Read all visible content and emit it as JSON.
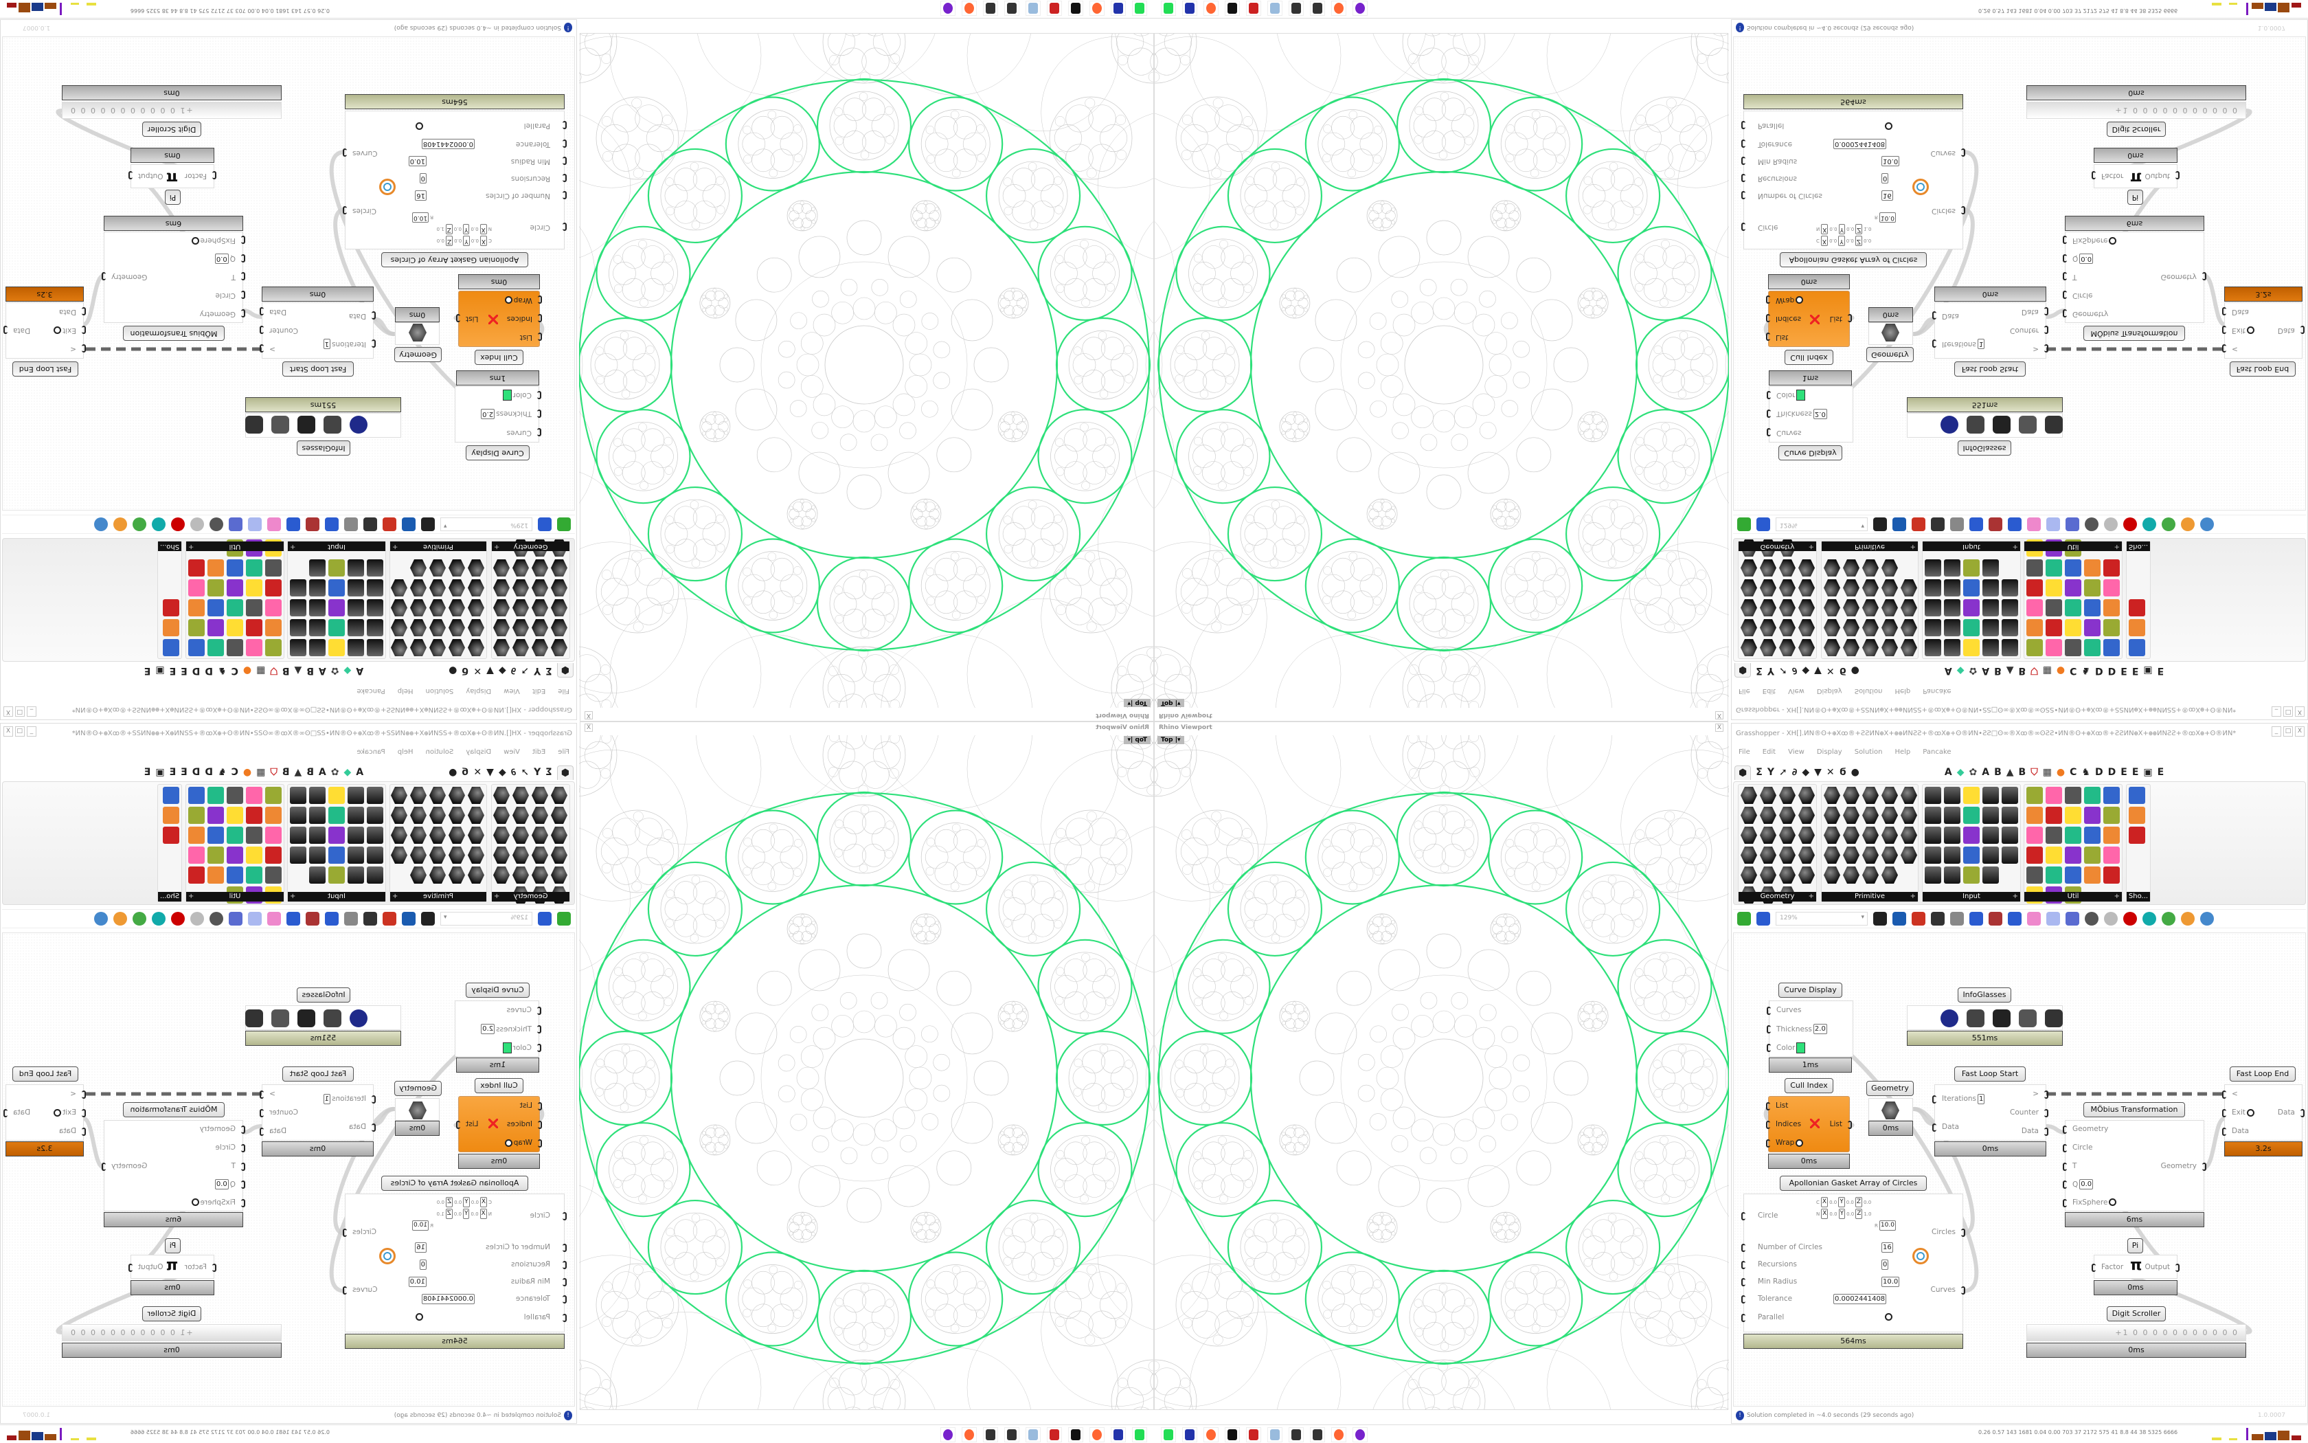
{
  "viewport": {
    "title": "Rhino Viewport",
    "view_name": "Top",
    "close": "X",
    "colors": {
      "highlight": "#2ee07a",
      "pattern": "#c8c8c8"
    }
  },
  "grasshopper": {
    "title": "Grasshopper - XH[].ИN®ʘ+ꚛXꚙ®+ƧƧИNꚛX+ꚛꚛИNƧƧ+®ꚙXꚛ+ʘ®ИN•ƧƧ□ʘ∞®Xꚙ®∞ʘƧƧ•ИN®ʘ+ꚛXꚙ®+ƧƧИNꚛX+ꚛꚛИNƧƧ+®ꚙXꚛ+ʘ®ИN*",
    "window_buttons": [
      "_",
      "□",
      "X"
    ],
    "menu": [
      "File",
      "Edit",
      "View",
      "Display",
      "Solution",
      "Help",
      "Pancake"
    ],
    "tabs": [
      "params-icon",
      "maths-icon",
      "sets-icon",
      "vector-icon",
      "curve-icon",
      "surface-icon",
      "mesh-icon",
      "intersect-icon",
      "transform-icon",
      "display-icon"
    ],
    "plugin_tabs": [
      "A",
      "leaf-icon",
      "gear-icon",
      "A",
      "B",
      "hill-icon",
      "B",
      "shield-icon",
      "grid-icon",
      "orange-circle-icon",
      "C",
      "rooster-icon",
      "D",
      "D",
      "E",
      "E",
      "dotted-square-icon",
      "E"
    ],
    "panels": [
      {
        "label": "Geometry",
        "expand": "+"
      },
      {
        "label": "Primitive",
        "expand": "+"
      },
      {
        "label": "Input",
        "expand": "+"
      },
      {
        "label": "Util",
        "expand": "+"
      },
      {
        "label": "Sho..."
      }
    ],
    "toolbar": {
      "zoom": "129%",
      "icons": [
        "new-document-icon",
        "save-icon",
        "zoom-extents-icon",
        "preview-eye-icon",
        "sketch-pen-icon",
        "cluster-icon",
        "email-icon",
        "gha-icon",
        "canvas-image-icon",
        "search-icon",
        "package-icon",
        "bulb-icon",
        "wire-icon",
        "preview-off-icon",
        "wireframe-icon",
        "shaded-icon",
        "selected-icon",
        "custom-icon",
        "shade-icon",
        "sphere-icon"
      ]
    },
    "components": [
      {
        "id": "curve_display",
        "label": "Curve Display",
        "time": "1ms",
        "inputs": [
          {
            "name": "Curves"
          },
          {
            "name": "Thickness",
            "value": "2.0"
          },
          {
            "name": "Color",
            "swatch": "#2ee07a"
          }
        ],
        "outputs": []
      },
      {
        "id": "infoglasses",
        "label": "InfoGlasses",
        "time": "551ms",
        "inputs": [],
        "outputs": []
      },
      {
        "id": "cull_index",
        "label": "Cull Index",
        "time": "0ms",
        "inputs": [
          {
            "name": "List"
          },
          {
            "name": "Indices"
          },
          {
            "name": "Wrap",
            "toggle": true
          }
        ],
        "outputs": [
          {
            "name": "List"
          }
        ]
      },
      {
        "id": "geometry",
        "label": "Geometry",
        "time": "0ms",
        "inputs": [],
        "outputs": []
      },
      {
        "id": "fast_loop_start",
        "label": "Fast Loop Start",
        "time": "0ms",
        "inputs": [
          {
            "name": "Iterations",
            "value": "1"
          },
          {
            "name": "Data"
          }
        ],
        "outputs": [
          {
            "name": ">"
          },
          {
            "name": "Counter"
          },
          {
            "name": "Data"
          }
        ]
      },
      {
        "id": "fast_loop_end",
        "label": "Fast Loop End",
        "time": "3.2s",
        "inputs": [
          {
            "name": "<"
          },
          {
            "name": "Exit",
            "toggle": true
          },
          {
            "name": "Data"
          }
        ],
        "outputs": [
          {
            "name": "Data"
          }
        ]
      },
      {
        "id": "mobius",
        "label": "MÖbius Transformation",
        "time": "6ms",
        "inputs": [
          {
            "name": "Geometry"
          },
          {
            "name": "Circle"
          },
          {
            "name": "T"
          },
          {
            "name": "Q",
            "value": "0.0"
          },
          {
            "name": "FixSphere",
            "toggle": true
          }
        ],
        "outputs": [
          {
            "name": "Geometry"
          }
        ]
      },
      {
        "id": "apollonian",
        "label": "Apollonian Gasket Array of Circles",
        "time": "564ms",
        "inputs": [
          {
            "name": "Circle",
            "vector_rows": [
              [
                "C",
                "X",
                "0.0",
                "Y",
                "0.0",
                "Z",
                "0.0"
              ],
              [
                "N",
                "X",
                "0.0",
                "Y",
                "0.0",
                "Z",
                "1.0"
              ],
              [
                "R",
                "10.0"
              ]
            ]
          },
          {
            "name": "Number of Circles",
            "value": "16"
          },
          {
            "name": "Recursions",
            "value": "0"
          },
          {
            "name": "Min Radius",
            "value": "10.0"
          },
          {
            "name": "Tolerance",
            "value": "0.0002441408"
          },
          {
            "name": "Parallel",
            "toggle": true
          }
        ],
        "outputs": [
          {
            "name": "Circles"
          },
          {
            "name": "Curves"
          }
        ]
      },
      {
        "id": "pi",
        "label": "Pi",
        "time": "0ms",
        "inputs": [
          {
            "name": "Factor"
          }
        ],
        "outputs": [
          {
            "name": "Output"
          }
        ]
      },
      {
        "id": "digit_scroller",
        "label": "Digit Scroller",
        "time": "0ms",
        "value": "+1 0 0 0 0 0 0 0 0 0 0 0",
        "inputs": [],
        "outputs": []
      }
    ],
    "status": {
      "message": "Solution completed in ~4.0 seconds (29 seconds ago)",
      "version": "1.0.0007"
    }
  },
  "taskbar": {
    "icons": [
      "device-manager-icon",
      "floppy-64-icon",
      "firefox-icon",
      "inkscape-icon",
      "red-app-icon",
      "notepad-icon",
      "maze-icon",
      "maze-icon",
      "firefox-icon",
      "purple-ghost-icon"
    ],
    "stats": "0.26 0.57 143 1681 0.04 0.00 703 37 2172 575 41 8.8 44 38 5325 6666"
  }
}
